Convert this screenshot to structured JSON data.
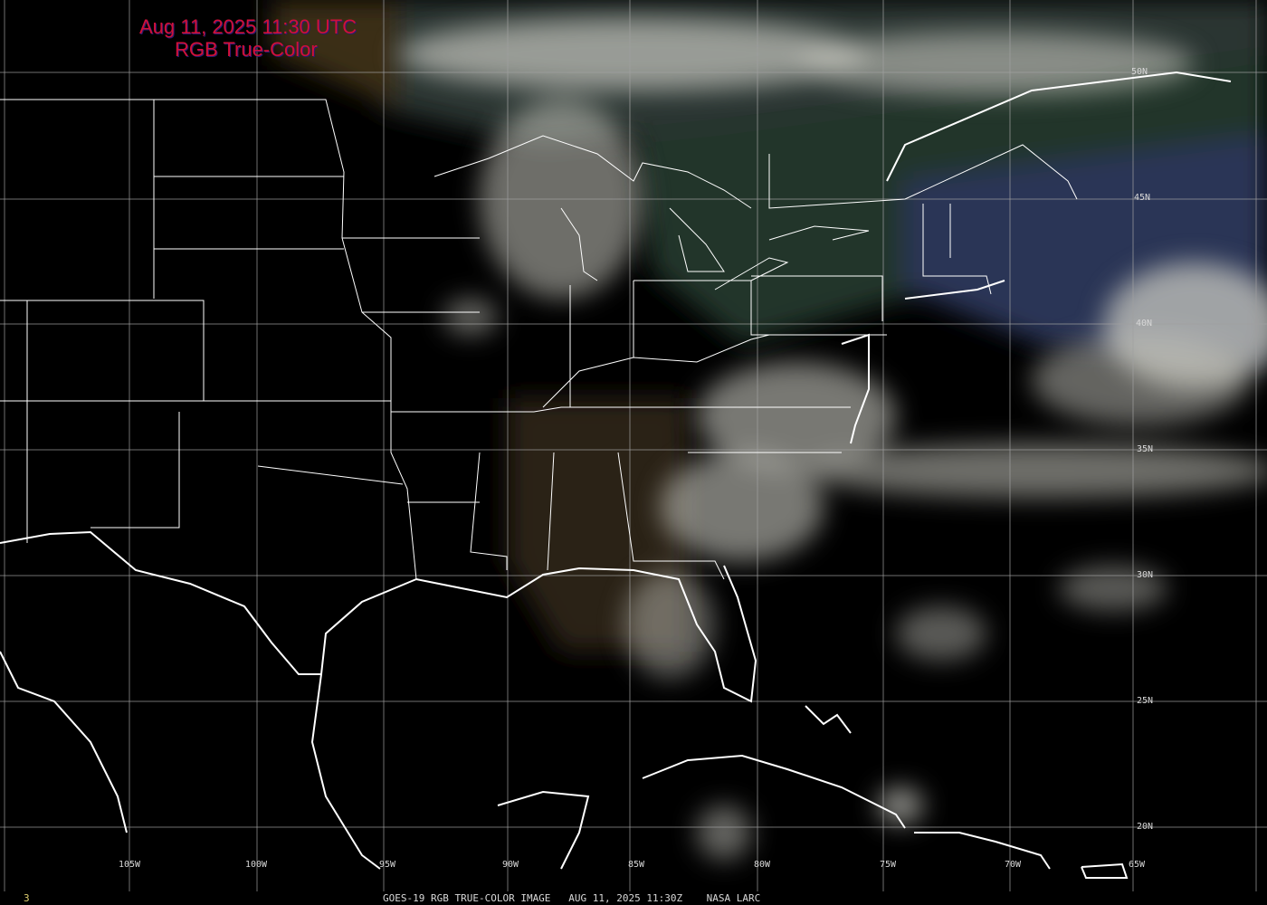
{
  "header": {
    "datetime": "Aug 11, 2025 11:30 UTC",
    "product": "RGB True-Color"
  },
  "latitude_labels": [
    "50N",
    "45N",
    "40N",
    "35N",
    "30N",
    "25N",
    "20N"
  ],
  "longitude_labels": [
    "105W",
    "100W",
    "95W",
    "90W",
    "85W",
    "80W",
    "75W",
    "70W",
    "65W"
  ],
  "footer": {
    "frame": "3",
    "caption": "GOES-19 RGB TRUE-COLOR IMAGE   AUG 11, 2025 11:30Z    NASA LARC"
  },
  "colors": {
    "title": "#d0103a",
    "grid": "#a0a0a0",
    "borders": "#ffffff",
    "land_ne": "#25392c",
    "cloud": "#c8c8c0",
    "ocean_haze": "#2a3450"
  }
}
